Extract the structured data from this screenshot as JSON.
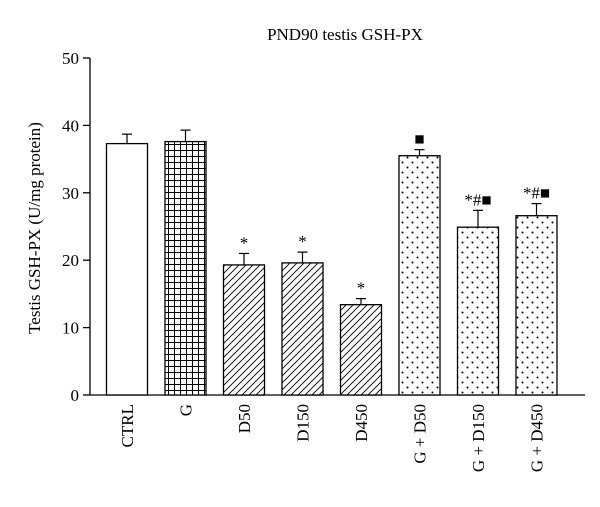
{
  "chart_data": {
    "type": "bar",
    "title": "PND90 testis GSH-PX",
    "ylabel": "Testis GSH-PX (U/mg protein)",
    "xlabel": "",
    "ylim": [
      0,
      50
    ],
    "yticks": [
      0,
      10,
      20,
      30,
      40,
      50
    ],
    "grid": false,
    "categories": [
      "CTRL",
      "G",
      "D50",
      "D150",
      "D450",
      "G + D50",
      "G + D150",
      "G + D450"
    ],
    "values": [
      37.3,
      37.6,
      19.3,
      19.6,
      13.4,
      35.5,
      24.9,
      26.6
    ],
    "errors": [
      1.4,
      1.7,
      1.7,
      1.6,
      0.9,
      0.9,
      2.5,
      1.8
    ],
    "fill_patterns": [
      "none",
      "grid",
      "diagonal-hatch",
      "diagonal-hatch",
      "diagonal-hatch",
      "dots",
      "dots",
      "dots"
    ],
    "annotations": [
      {
        "category": "D50",
        "text": "*"
      },
      {
        "category": "D150",
        "text": "*"
      },
      {
        "category": "D450",
        "text": "*"
      },
      {
        "category": "G + D50",
        "text": "■"
      },
      {
        "category": "G + D150",
        "text": "*#■"
      },
      {
        "category": "G + D450",
        "text": "*#■"
      }
    ]
  }
}
